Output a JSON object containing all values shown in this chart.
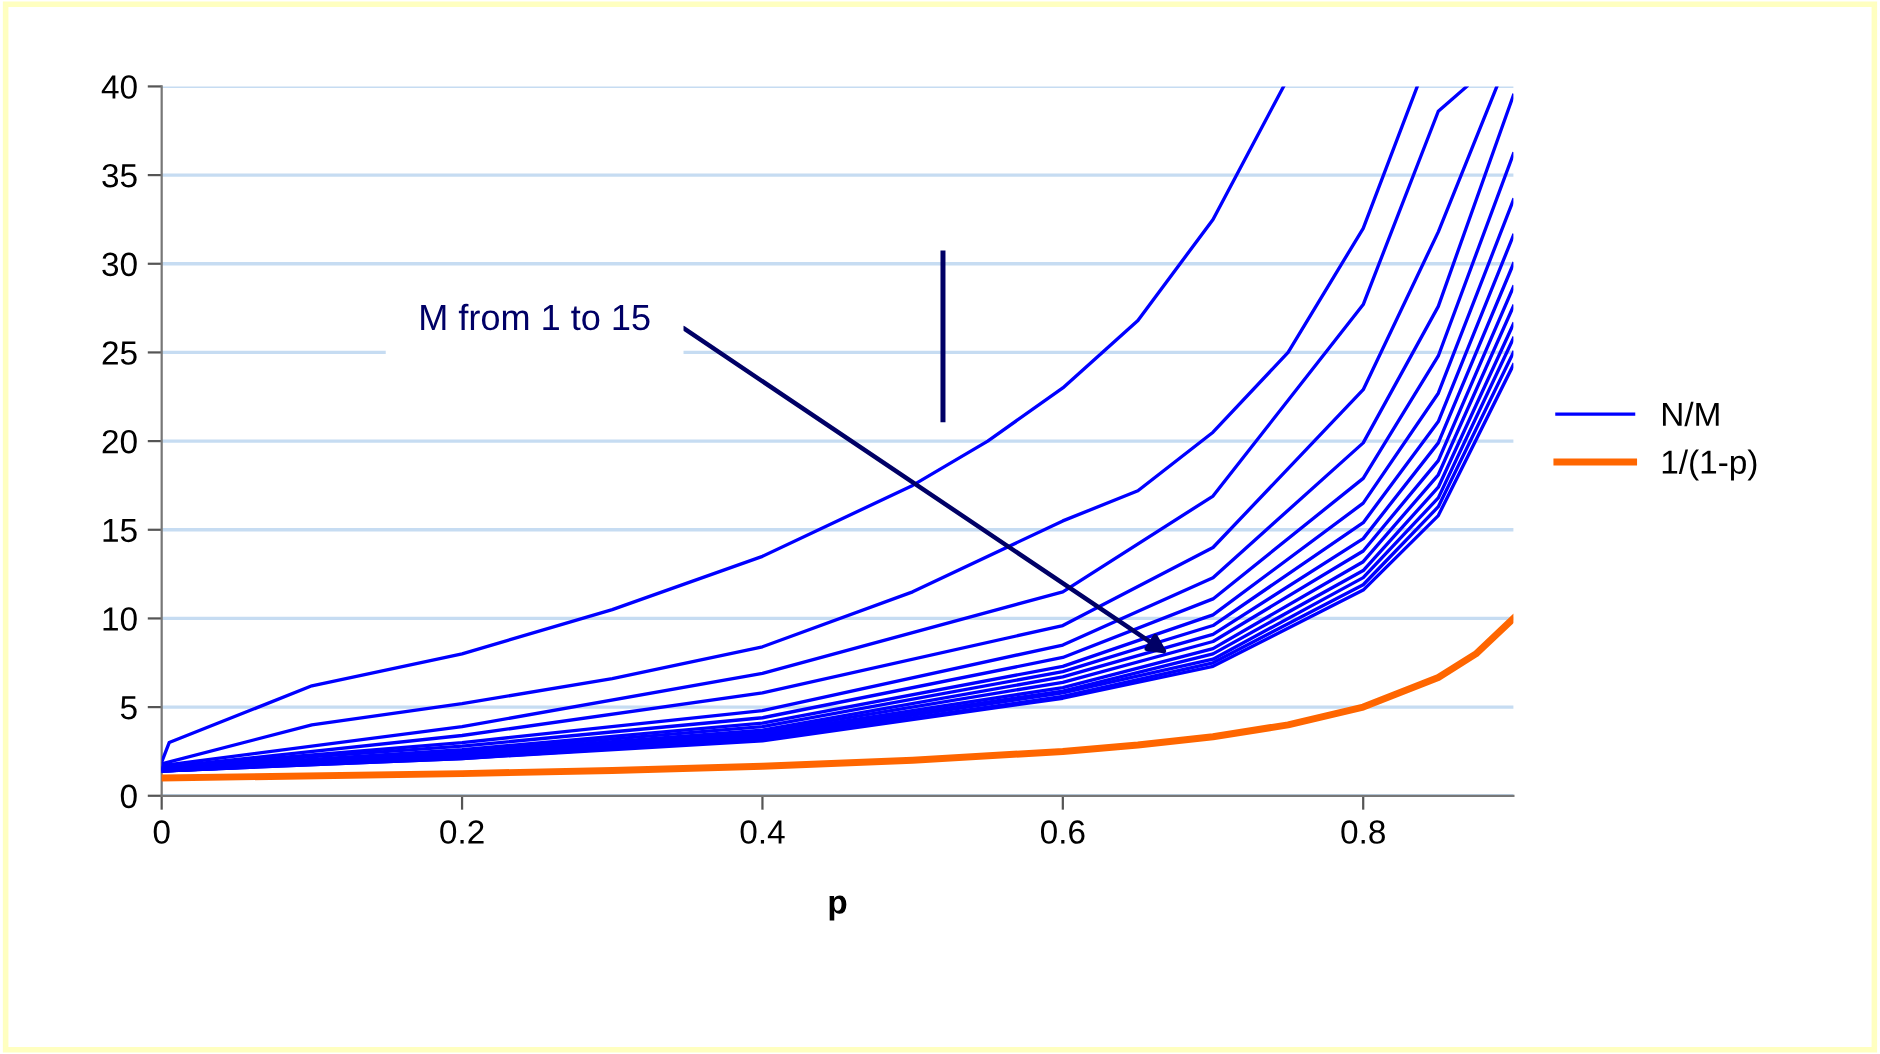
{
  "chart_data": {
    "type": "line",
    "xlabel": "p",
    "xlim": [
      0,
      0.9
    ],
    "xticks": [
      0,
      0.2,
      0.4,
      0.6,
      0.8
    ],
    "ylim": [
      0,
      40
    ],
    "yticks": [
      0,
      5,
      10,
      15,
      20,
      25,
      30,
      35,
      40
    ],
    "grid": "y",
    "legend": "right",
    "marker": "none",
    "line_style": "solid",
    "annotations": [
      {
        "text": "M from 1 to 15",
        "x": 0.67,
        "y": 8
      }
    ],
    "series": [
      {
        "name": "N/M",
        "color": "#0000ff",
        "x": [
          0,
          0.005,
          0.1,
          0.2,
          0.3,
          0.4,
          0.5,
          0.55,
          0.6,
          0.65,
          0.7,
          0.747
        ],
        "values": [
          1.9,
          3,
          6.2,
          8,
          10.5,
          13.5,
          17.5,
          20,
          23,
          26.8,
          32.5,
          40
        ]
      },
      {
        "color": "#0000ff",
        "x": [
          0,
          0.1,
          0.2,
          0.3,
          0.4,
          0.5,
          0.6,
          0.65,
          0.7,
          0.75,
          0.8,
          0.836
        ],
        "values": [
          1.8,
          4,
          5.2,
          6.6,
          8.4,
          11.5,
          15.5,
          17.2,
          20.5,
          25,
          32,
          40
        ]
      },
      {
        "color": "#0000ff",
        "x": [
          0,
          0.2,
          0.4,
          0.6,
          0.7,
          0.8,
          0.85,
          0.869
        ],
        "values": [
          1.7,
          3.9,
          6.9,
          11.5,
          16.9,
          27.7,
          38.6,
          40
        ]
      },
      {
        "color": "#0000ff",
        "x": [
          0,
          0.2,
          0.4,
          0.6,
          0.7,
          0.8,
          0.85,
          0.889
        ],
        "values": [
          1.6,
          3.4,
          5.8,
          9.6,
          14,
          22.9,
          31.8,
          40
        ]
      },
      {
        "color": "#0000ff",
        "x": [
          0,
          0.2,
          0.4,
          0.6,
          0.7,
          0.8,
          0.85,
          0.9
        ],
        "values": [
          1.6,
          3,
          4.8,
          8.5,
          12.3,
          19.9,
          27.6,
          39.5
        ]
      },
      {
        "color": "#0000ff",
        "x": [
          0,
          0.2,
          0.4,
          0.6,
          0.7,
          0.8,
          0.85,
          0.9
        ],
        "values": [
          1.6,
          2.8,
          4.4,
          7.8,
          11.1,
          17.9,
          24.8,
          36.2
        ]
      },
      {
        "color": "#0000ff",
        "x": [
          0,
          0.2,
          0.4,
          0.6,
          0.7,
          0.8,
          0.85,
          0.9
        ],
        "values": [
          1.5,
          2.6,
          4.1,
          7.3,
          10.2,
          16.5,
          22.7,
          33.6
        ]
      },
      {
        "color": "#0000ff",
        "x": [
          0,
          0.2,
          0.4,
          0.6,
          0.7,
          0.8,
          0.85,
          0.9
        ],
        "values": [
          1.5,
          2.5,
          3.9,
          7,
          9.6,
          15.4,
          21.1,
          31.6
        ]
      },
      {
        "color": "#0000ff",
        "x": [
          0,
          0.2,
          0.4,
          0.6,
          0.7,
          0.8,
          0.85,
          0.9
        ],
        "values": [
          1.5,
          2.4,
          3.7,
          6.7,
          9.1,
          14.5,
          19.9,
          30
        ]
      },
      {
        "color": "#0000ff",
        "x": [
          0,
          0.2,
          0.4,
          0.6,
          0.7,
          0.8,
          0.85,
          0.9
        ],
        "values": [
          1.5,
          2.3,
          3.6,
          6.4,
          8.7,
          13.8,
          18.9,
          28.7
        ]
      },
      {
        "color": "#0000ff",
        "x": [
          0,
          0.2,
          0.4,
          0.6,
          0.7,
          0.8,
          0.85,
          0.9
        ],
        "values": [
          1.4,
          2.3,
          3.5,
          6.1,
          8.3,
          13.2,
          18.1,
          27.6
        ]
      },
      {
        "color": "#0000ff",
        "x": [
          0,
          0.2,
          0.4,
          0.6,
          0.7,
          0.8,
          0.85,
          0.9
        ],
        "values": [
          1.4,
          2.2,
          3.4,
          5.9,
          8,
          12.7,
          17.4,
          26.6
        ]
      },
      {
        "color": "#0000ff",
        "x": [
          0,
          0.2,
          0.4,
          0.6,
          0.7,
          0.8,
          0.85,
          0.9
        ],
        "values": [
          1.4,
          2.2,
          3.3,
          5.8,
          7.7,
          12.3,
          16.8,
          25.8
        ]
      },
      {
        "color": "#0000ff",
        "x": [
          0,
          0.2,
          0.4,
          0.6,
          0.7,
          0.8,
          0.85,
          0.9
        ],
        "values": [
          1.4,
          2.1,
          3.2,
          5.6,
          7.5,
          11.9,
          16.3,
          25
        ]
      },
      {
        "color": "#0000ff",
        "x": [
          0,
          0.2,
          0.4,
          0.6,
          0.7,
          0.8,
          0.85,
          0.9
        ],
        "values": [
          1.4,
          2.1,
          3.1,
          5.5,
          7.3,
          11.6,
          15.8,
          24.3
        ]
      },
      {
        "name": "1/(1-p)",
        "color": "#ff6600",
        "x": [
          0,
          0.2,
          0.3,
          0.4,
          0.5,
          0.6,
          0.65,
          0.7,
          0.75,
          0.8,
          0.85,
          0.875,
          0.9
        ],
        "values": [
          1,
          1.25,
          1.43,
          1.67,
          2,
          2.5,
          2.86,
          3.33,
          4,
          5,
          6.67,
          8,
          10
        ]
      }
    ]
  }
}
